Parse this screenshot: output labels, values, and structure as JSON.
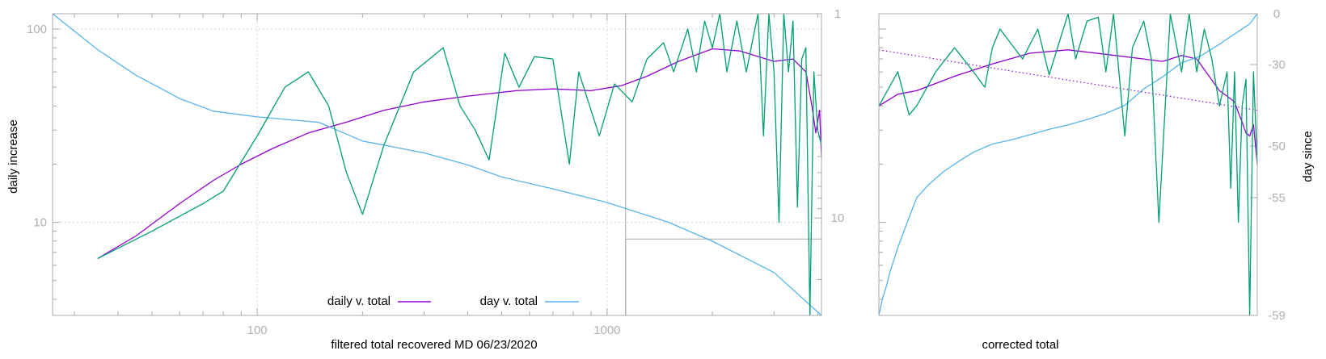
{
  "colors": {
    "daily": "#9400d3",
    "day": "#56b4e9",
    "raw": "#009e73",
    "axis": "#a8a8a8",
    "tickText": "#b0b0b0"
  },
  "chart_data": [
    {
      "type": "line",
      "xlabel": "filtered total recovered MD 06/23/2020",
      "ylabel": "daily increase",
      "x_scale": "log",
      "y_scale": "log",
      "xlim": [
        26,
        4100
      ],
      "ylim": [
        3.3,
        120
      ],
      "y2_reversed": true,
      "y2lim": [
        1,
        30
      ],
      "x_ticks": [
        {
          "v": 100,
          "label": "100"
        },
        {
          "v": 1000,
          "label": "1000"
        }
      ],
      "y_ticks": [
        {
          "v": 10,
          "label": "10"
        },
        {
          "v": 100,
          "label": "100"
        }
      ],
      "y2_ticks": [
        {
          "v": 1,
          "label": "1"
        },
        {
          "v": 10,
          "label": "10"
        }
      ],
      "grid": true,
      "inset_rect": {
        "x0": 1130,
        "x1": 4100,
        "y0": 3.3,
        "y1": 8.2
      },
      "legend_position": "bottom-center",
      "series": [
        {
          "name": "daily v. total",
          "color": "#9400d3",
          "axis": "y",
          "legend": true,
          "x": [
            35,
            45,
            60,
            75,
            90,
            110,
            140,
            180,
            230,
            300,
            400,
            550,
            700,
            900,
            1100,
            1300,
            1600,
            2000,
            2400,
            3000,
            3400,
            3700,
            3850,
            3950,
            4050,
            4100
          ],
          "y": [
            6.5,
            8.5,
            12.5,
            16.5,
            20.0,
            24.0,
            29.0,
            33.0,
            38.0,
            42.0,
            45.0,
            48.0,
            49.0,
            48.0,
            51.0,
            57.0,
            68.0,
            79.0,
            77.0,
            68.0,
            70.0,
            60.0,
            40.0,
            29.0,
            38.0,
            22.0
          ]
        },
        {
          "name": "day v. total",
          "color": "#56b4e9",
          "axis": "y2",
          "legend": true,
          "x": [
            26,
            35,
            45,
            60,
            75,
            100,
            150,
            200,
            300,
            400,
            500,
            700,
            1000,
            1500,
            2000,
            3000,
            4100
          ],
          "y": [
            1.0,
            1.5,
            2.0,
            2.6,
            3.0,
            3.2,
            3.4,
            4.2,
            4.8,
            5.5,
            6.3,
            7.2,
            8.4,
            10.5,
            13.0,
            18.5,
            30.0
          ]
        },
        {
          "name": "",
          "color": "#009e73",
          "axis": "y",
          "legend": false,
          "x": [
            35,
            50,
            70,
            80,
            100,
            120,
            140,
            160,
            180,
            200,
            230,
            280,
            340,
            380,
            420,
            460,
            510,
            560,
            620,
            700,
            780,
            830,
            950,
            1050,
            1180,
            1300,
            1450,
            1550,
            1700,
            1800,
            1900,
            2000,
            2100,
            2200,
            2350,
            2500,
            2700,
            2800,
            2900,
            3000,
            3100,
            3200,
            3300,
            3400,
            3500,
            3600,
            3700,
            3800,
            3900,
            4000,
            4100
          ],
          "y": [
            6.5,
            9.0,
            12.5,
            14.5,
            28.0,
            50.0,
            60.0,
            40.0,
            18.0,
            11.0,
            25.0,
            60.0,
            80.0,
            40.0,
            30.0,
            21.0,
            75.0,
            50.0,
            72.0,
            70.0,
            20.0,
            60.0,
            28.0,
            52.0,
            42.0,
            70.0,
            85.0,
            60.0,
            100.0,
            60.0,
            110.0,
            80.0,
            120.0,
            60.0,
            110.0,
            60.0,
            120.0,
            28.0,
            120.0,
            60.0,
            10.0,
            120.0,
            60.0,
            110.0,
            12.0,
            70.0,
            80.0,
            3.3,
            60.0,
            30.0,
            25.0
          ]
        }
      ]
    },
    {
      "type": "line",
      "xlabel": "corrected total",
      "ylabel": "day since",
      "x_scale": "linear",
      "y_scale": "log",
      "xlim": [
        0,
        100
      ],
      "ylim": [
        3.3,
        120
      ],
      "y2_ticks": [
        {
          "v": 0,
          "label": "0"
        },
        {
          "v": -30,
          "label": "-30"
        },
        {
          "v": -50,
          "label": "-50"
        },
        {
          "v": -55,
          "label": "-55"
        },
        {
          "v": -59,
          "label": "-59"
        }
      ],
      "grid": false,
      "series": [
        {
          "name": "",
          "color": "#9400d3",
          "style": "dotted",
          "legend": false,
          "x": [
            0,
            100
          ],
          "y": [
            78,
            38
          ]
        },
        {
          "name": "",
          "color": "#9400d3",
          "legend": false,
          "x": [
            0,
            5,
            10,
            20,
            30,
            40,
            50,
            60,
            70,
            75,
            80,
            84,
            87,
            90,
            92,
            94,
            95,
            96,
            97,
            98,
            99,
            100
          ],
          "y": [
            40,
            46,
            48,
            57,
            66,
            75,
            78,
            74,
            70,
            68,
            73,
            70,
            58,
            48,
            45,
            42,
            37,
            33,
            29,
            28,
            32,
            20
          ]
        },
        {
          "name": "",
          "color": "#56b4e9",
          "legend": false,
          "x": [
            0,
            1,
            2,
            3,
            5,
            7,
            10,
            13,
            17,
            21,
            25,
            30,
            35,
            40,
            45,
            50,
            55,
            60,
            65,
            70,
            75,
            80,
            85,
            90,
            94,
            96,
            98,
            99,
            100
          ],
          "y": [
            -59,
            -58.4,
            -58.0,
            -57.5,
            -56.7,
            -56.0,
            -55.0,
            -53.8,
            -52.5,
            -51.5,
            -50.6,
            -49.5,
            -48.5,
            -47.2,
            -45.9,
            -44.8,
            -43.5,
            -42.0,
            -40.0,
            -36.0,
            -33.0,
            -29.0,
            -25.0,
            -18.0,
            -12.0,
            -9.0,
            -6.0,
            -3.0,
            0.0
          ]
        },
        {
          "name": "",
          "color": "#009e73",
          "legend": false,
          "x": [
            0,
            5,
            8,
            10,
            15,
            20,
            25,
            28,
            30,
            32,
            38,
            42,
            45,
            50,
            52,
            55,
            58,
            60,
            62,
            65,
            67,
            70,
            72,
            74,
            77,
            80,
            82,
            84,
            86,
            88,
            90,
            92,
            93,
            94,
            95,
            96,
            97,
            98,
            99,
            100
          ],
          "y": [
            40,
            60,
            36,
            40,
            60,
            80,
            60,
            50,
            80,
            100,
            70,
            100,
            58,
            120,
            70,
            110,
            115,
            60,
            120,
            28,
            80,
            110,
            70,
            10,
            120,
            60,
            120,
            60,
            100,
            70,
            40,
            60,
            15,
            60,
            10,
            40,
            55,
            3.3,
            60,
            20
          ]
        }
      ]
    }
  ],
  "legend": {
    "daily": "daily v. total",
    "day": "day v. total"
  }
}
